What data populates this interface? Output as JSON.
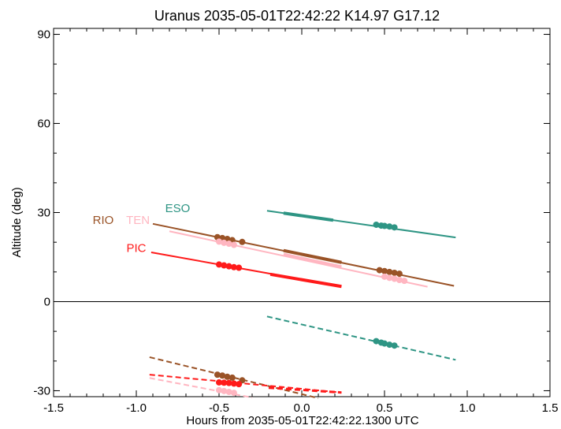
{
  "chart_data": {
    "type": "line",
    "title": "Uranus 2035-05-01T22:42:22  K14.97  G17.12",
    "xlabel": "Hours from 2035-05-01T22:42:22.1300 UTC",
    "ylabel": "Altitude (deg)",
    "xlim": [
      -1.5,
      1.5
    ],
    "ylim": [
      -32,
      92
    ],
    "xticks": [
      "-1.5",
      "-1.0",
      "-0.5",
      "0.0",
      "0.5",
      "1.0",
      "1.5"
    ],
    "yticks": [
      "-30",
      "0",
      "30",
      "60",
      "90"
    ],
    "zero_line": 0,
    "grid": false,
    "series": [
      {
        "name": "ESO",
        "color": "#2e9584",
        "label_at": [
          -0.75,
          31.5
        ],
        "line": [
          [
            -0.21,
            30.6
          ],
          [
            0.93,
            21.6
          ]
        ],
        "thick": [
          [
            -0.11,
            29.8
          ],
          [
            0.19,
            27.4
          ]
        ],
        "dots": [
          [
            0.45,
            25.9
          ],
          [
            0.48,
            25.6
          ],
          [
            0.5,
            25.5
          ],
          [
            0.53,
            25.3
          ],
          [
            0.56,
            25.0
          ]
        ],
        "below_line": [
          [
            -0.21,
            -5.0
          ],
          [
            0.93,
            -19.6
          ]
        ],
        "below_dots": [
          [
            0.45,
            -13.3
          ],
          [
            0.48,
            -13.8
          ],
          [
            0.5,
            -14.1
          ],
          [
            0.53,
            -14.5
          ],
          [
            0.56,
            -14.8
          ]
        ]
      },
      {
        "name": "RIO",
        "color": "#9a5327",
        "label_at": [
          -1.2,
          27.5
        ],
        "line": [
          [
            -0.9,
            26.2
          ],
          [
            0.92,
            5.3
          ]
        ],
        "thick": [
          [
            -0.11,
            17.2
          ],
          [
            0.24,
            13.2
          ]
        ],
        "dots": [
          [
            -0.51,
            21.7
          ],
          [
            -0.48,
            21.4
          ],
          [
            -0.45,
            21.1
          ],
          [
            -0.42,
            20.7
          ],
          [
            -0.36,
            20.1
          ],
          [
            0.47,
            10.6
          ],
          [
            0.5,
            10.3
          ],
          [
            0.53,
            10.0
          ],
          [
            0.56,
            9.7
          ],
          [
            0.59,
            9.4
          ]
        ],
        "below_line": [
          [
            -0.92,
            -18.7
          ],
          [
            0.1,
            -32.5
          ]
        ],
        "below_dots": [
          [
            -0.51,
            -24.6
          ],
          [
            -0.48,
            -24.9
          ],
          [
            -0.45,
            -25.3
          ],
          [
            -0.42,
            -25.6
          ],
          [
            -0.36,
            -26.5
          ]
        ]
      },
      {
        "name": "TEN",
        "color": "#ffb6c1",
        "label_at": [
          -0.99,
          27.5
        ],
        "line": [
          [
            -0.8,
            23.7
          ],
          [
            0.76,
            5.0
          ]
        ],
        "thick": [
          [
            -0.11,
            15.9
          ],
          [
            0.24,
            11.7
          ]
        ],
        "dots": [
          [
            -0.5,
            20.2
          ],
          [
            -0.47,
            19.8
          ],
          [
            -0.44,
            19.5
          ],
          [
            -0.41,
            19.1
          ],
          [
            0.5,
            8.4
          ],
          [
            0.53,
            8.0
          ],
          [
            0.56,
            7.7
          ],
          [
            0.59,
            7.3
          ],
          [
            0.62,
            7.0
          ]
        ],
        "below_line": [
          [
            -0.92,
            -25.7
          ],
          [
            -0.3,
            -32.3
          ]
        ],
        "below_dots": [
          [
            -0.5,
            -29.8
          ],
          [
            -0.47,
            -30.1
          ],
          [
            -0.44,
            -30.4
          ],
          [
            -0.41,
            -30.7
          ]
        ]
      },
      {
        "name": "PIC",
        "color": "#ff1a1a",
        "label_at": [
          -1.0,
          18.0
        ],
        "line": [
          [
            -0.91,
            16.6
          ],
          [
            0.24,
            5.1
          ]
        ],
        "thick": [
          [
            -0.19,
            9.2
          ],
          [
            0.24,
            5.1
          ]
        ],
        "dots": [
          [
            -0.5,
            12.5
          ],
          [
            -0.47,
            12.2
          ],
          [
            -0.44,
            11.9
          ],
          [
            -0.41,
            11.6
          ],
          [
            -0.38,
            11.4
          ]
        ],
        "below_line": [
          [
            -0.92,
            -24.6
          ],
          [
            0.24,
            -30.6
          ]
        ],
        "below_dots": [
          [
            -0.5,
            -27.2
          ],
          [
            -0.47,
            -27.3
          ],
          [
            -0.44,
            -27.4
          ],
          [
            -0.41,
            -27.6
          ],
          [
            -0.38,
            -27.8
          ]
        ],
        "below_thick": [
          [
            -0.2,
            -29.0
          ],
          [
            0.24,
            -30.6
          ]
        ]
      }
    ]
  }
}
